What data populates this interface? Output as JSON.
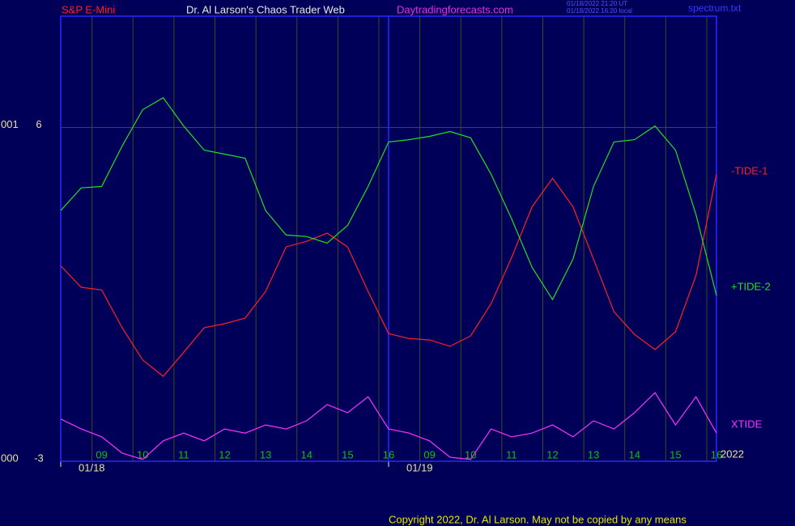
{
  "header": {
    "symbol": "S&P E-Mini",
    "site_title": "Dr. Al Larson's Chaos Trader Web",
    "url": "Daytradingforecasts.com",
    "timestamp_ut": "01/18/2022 21:20 UT",
    "timestamp_local": "01/18/2022 16:20 local",
    "file": "spectrum.txt"
  },
  "footer": {
    "copyright": "Copyright 2022, Dr. Al Larson. May not be copied by any means"
  },
  "chart_data": {
    "type": "line",
    "xlim": [
      0,
      16
    ],
    "ylim": [
      -3,
      9
    ],
    "yticks": [
      6,
      -3
    ],
    "left_labels": [
      {
        "value": 6,
        "label": "001"
      },
      {
        "value": -3,
        "label": "000"
      }
    ],
    "xticks": [
      {
        "value": 1,
        "label": "09"
      },
      {
        "value": 2,
        "label": "10"
      },
      {
        "value": 3,
        "label": "11"
      },
      {
        "value": 4,
        "label": "12"
      },
      {
        "value": 5,
        "label": "13"
      },
      {
        "value": 6,
        "label": "14"
      },
      {
        "value": 7,
        "label": "15"
      },
      {
        "value": 8,
        "label": "16"
      },
      {
        "value": 9,
        "label": "09"
      },
      {
        "value": 10,
        "label": "10"
      },
      {
        "value": 11,
        "label": "11"
      },
      {
        "value": 12,
        "label": "12"
      },
      {
        "value": 13,
        "label": "13"
      },
      {
        "value": 14,
        "label": "14"
      },
      {
        "value": 15,
        "label": "15"
      },
      {
        "value": 16,
        "label": "16"
      }
    ],
    "date_ticks": [
      {
        "value": 0,
        "label": "01/18"
      },
      {
        "value": 8,
        "label": "01/19"
      }
    ],
    "year_label": "2022",
    "grid": true,
    "x": [
      0,
      0.5,
      1,
      1.5,
      2,
      2.5,
      3,
      3.5,
      4,
      4.5,
      5,
      5.5,
      6,
      6.5,
      7,
      7.5,
      8,
      8.5,
      9,
      9.5,
      10,
      10.5,
      11,
      11.5,
      12,
      12.5,
      13,
      13.5,
      14,
      14.5,
      15,
      15.5,
      16
    ],
    "series": [
      {
        "name": "-TIDE-1",
        "color": "#ff2020",
        "values": [
          2.27,
          1.69,
          1.62,
          0.6,
          -0.27,
          -0.71,
          -0.06,
          0.6,
          0.71,
          0.86,
          1.58,
          2.78,
          2.93,
          3.15,
          2.78,
          1.58,
          0.44,
          0.31,
          0.27,
          0.1,
          0.38,
          1.25,
          2.49,
          3.86,
          4.63,
          3.86,
          2.45,
          1.03,
          0.42,
          0.01,
          0.49,
          2.01,
          4.74
        ]
      },
      {
        "name": "+TIDE-2",
        "color": "#20e020",
        "values": [
          3.76,
          4.37,
          4.41,
          5.5,
          6.48,
          6.8,
          6.04,
          5.39,
          5.28,
          5.17,
          3.76,
          3.1,
          3.06,
          2.88,
          3.36,
          4.41,
          5.61,
          5.67,
          5.76,
          5.89,
          5.72,
          4.74,
          3.54,
          2.23,
          1.36,
          2.45,
          4.41,
          5.61,
          5.67,
          6.04,
          5.39,
          3.65,
          1.47
        ]
      },
      {
        "name": "XTIDE",
        "color": "#ff30ff",
        "values": [
          -1.86,
          -2.13,
          -2.34,
          -2.78,
          -2.95,
          -2.45,
          -2.24,
          -2.45,
          -2.13,
          -2.24,
          -2.02,
          -2.13,
          -1.91,
          -1.47,
          -1.69,
          -1.26,
          -2.13,
          -2.24,
          -2.45,
          -2.89,
          -2.95,
          -2.13,
          -2.34,
          -2.24,
          -2.02,
          -2.34,
          -1.91,
          -2.13,
          -1.69,
          -1.15,
          -2.02,
          -1.26,
          -2.24
        ]
      }
    ]
  }
}
